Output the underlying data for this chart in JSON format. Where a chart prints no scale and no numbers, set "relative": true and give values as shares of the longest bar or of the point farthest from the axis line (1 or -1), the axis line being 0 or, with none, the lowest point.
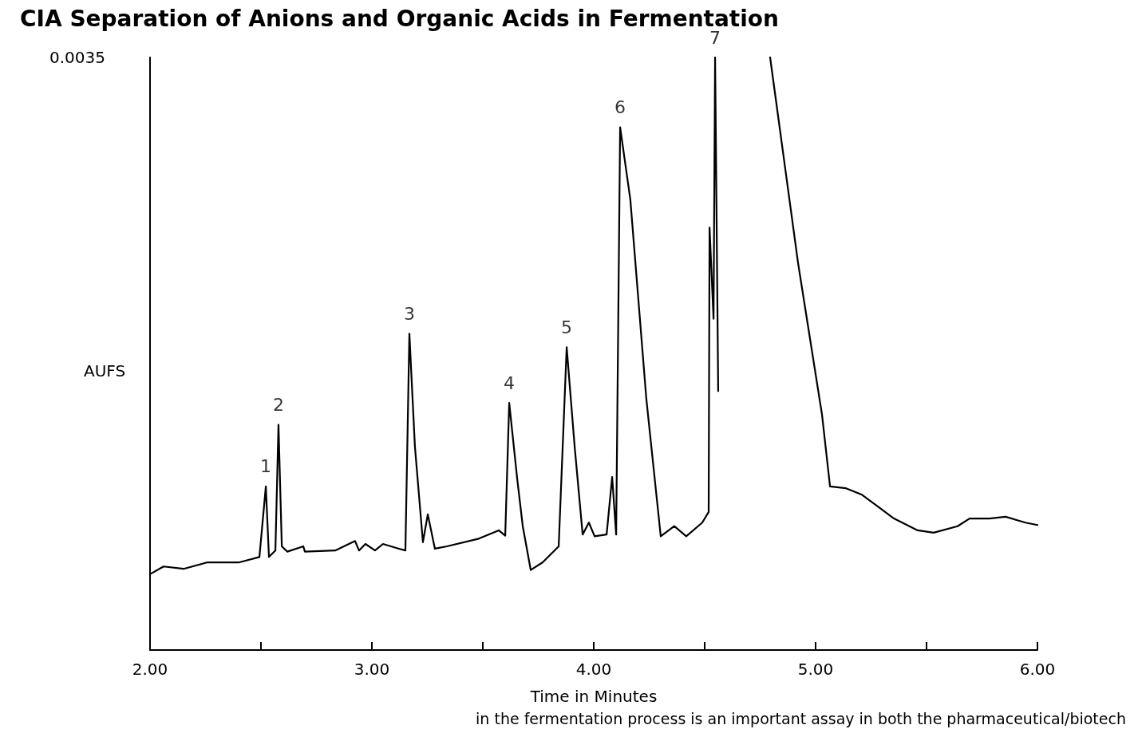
{
  "chart_data": {
    "type": "line",
    "relative": true,
    "title": "CIA Separation of Anions and Organic Acids in Fermentation",
    "xlabel": "Time in Minutes",
    "ylabel": "AUFS",
    "annotations": [
      "0.0035",
      "in the fermentation process is an important assay in both the pharmaceutical/biotech",
      {
        "text": "1",
        "x": 2.522,
        "y": 0.276
      },
      {
        "text": "2",
        "x": 2.579,
        "y": 0.38
      },
      {
        "text": "3",
        "x": 3.169,
        "y": 0.534
      },
      {
        "text": "4",
        "x": 3.619,
        "y": 0.417
      },
      {
        "text": "5",
        "x": 3.878,
        "y": 0.511
      },
      {
        "text": "6",
        "x": 4.119,
        "y": 0.882
      },
      {
        "text": "7",
        "x": 4.547,
        "y": 1.0
      }
    ],
    "x": [
      2.0,
      2.061,
      2.151,
      2.259,
      2.403,
      2.493,
      2.522,
      2.536,
      2.565,
      2.579,
      2.594,
      2.619,
      2.691,
      2.698,
      2.835,
      2.924,
      2.942,
      2.971,
      3.014,
      3.05,
      3.122,
      3.151,
      3.169,
      3.194,
      3.23,
      3.252,
      3.284,
      3.338,
      3.482,
      3.572,
      3.601,
      3.619,
      3.655,
      3.68,
      3.716,
      3.77,
      3.842,
      3.878,
      3.914,
      3.95,
      3.978,
      4.004,
      4.058,
      4.083,
      4.101,
      4.119,
      4.165,
      4.237,
      4.302,
      4.363,
      4.417,
      4.489,
      4.518,
      4.522,
      4.54,
      4.547,
      4.561,
      4.7,
      4.795,
      4.921,
      5.029,
      5.065,
      5.137,
      5.209,
      5.281,
      5.353,
      5.46,
      5.532,
      5.64,
      5.694,
      5.784,
      5.856,
      5.946,
      6.0
    ],
    "values": [
      0.128,
      0.141,
      0.137,
      0.148,
      0.148,
      0.157,
      0.276,
      0.157,
      0.168,
      0.38,
      0.175,
      0.166,
      0.175,
      0.166,
      0.168,
      0.184,
      0.168,
      0.179,
      0.168,
      0.179,
      0.171,
      0.168,
      0.534,
      0.343,
      0.182,
      0.229,
      0.171,
      0.175,
      0.188,
      0.202,
      0.193,
      0.417,
      0.289,
      0.209,
      0.135,
      0.148,
      0.175,
      0.511,
      0.343,
      0.195,
      0.215,
      0.192,
      0.195,
      0.292,
      0.195,
      0.882,
      0.76,
      0.424,
      0.192,
      0.209,
      0.192,
      0.215,
      0.233,
      0.713,
      0.559,
      1.0,
      0.437,
      null,
      1.0,
      0.653,
      0.397,
      0.276,
      0.273,
      0.262,
      0.242,
      0.222,
      0.202,
      0.198,
      0.209,
      0.222,
      0.222,
      0.225,
      0.215,
      0.211
    ],
    "color": "#000000",
    "xlim": [
      2,
      6
    ],
    "xticks": [
      {
        "value": 2,
        "label": "2.00"
      },
      {
        "value": 2.5,
        "label": null
      },
      {
        "value": 3,
        "label": "3.00"
      },
      {
        "value": 3.5,
        "label": null
      },
      {
        "value": 4,
        "label": "4.00"
      },
      {
        "value": 4.5,
        "label": null
      },
      {
        "value": 5,
        "label": "5.00"
      },
      {
        "value": 5.5,
        "label": null
      },
      {
        "value": 6,
        "label": "6.00"
      }
    ],
    "grid": false,
    "marker": "none",
    "line_style": "solid"
  }
}
